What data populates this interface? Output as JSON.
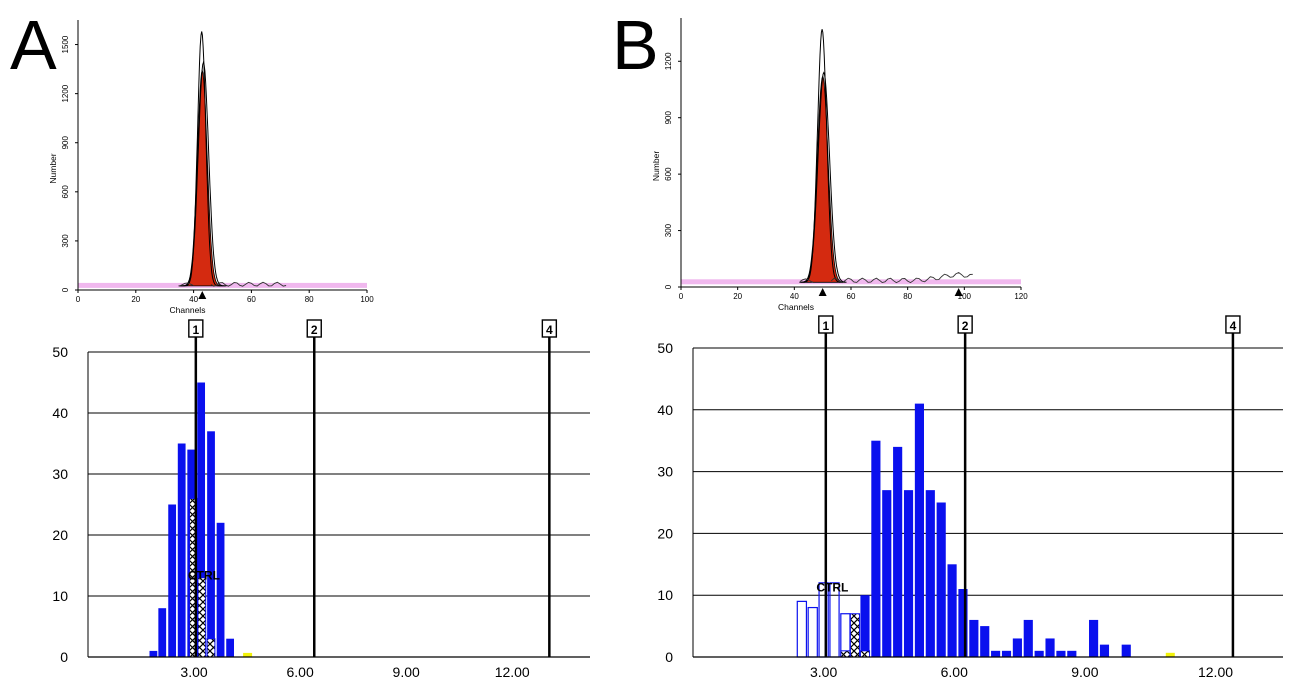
{
  "panels": [
    {
      "letter": "A",
      "flow": {
        "ylabel": "Number",
        "xlabel": "Channels",
        "xticks": [
          "0",
          "20",
          "40",
          "60",
          "80",
          "100"
        ],
        "yticks": [
          "0",
          "300",
          "600",
          "900",
          "1200",
          "1500"
        ],
        "xlim": [
          0,
          100
        ],
        "ylim": [
          0,
          1650
        ],
        "baseline": 25,
        "peak_center": 43,
        "peak_width": 1.7,
        "peak_height_fill": 1340,
        "peak_height_line1": 1390,
        "peak_height_line2": 1580,
        "markers": [
          43
        ]
      },
      "hist": {
        "yticks": [
          "0",
          "10",
          "20",
          "30",
          "40",
          "50"
        ],
        "xticks": [
          "3.00",
          "6.00",
          "9.00",
          "12.00"
        ],
        "xtick_values": [
          3,
          6,
          9,
          12
        ],
        "xlim": [
          0,
          14.2
        ],
        "ylim": [
          0,
          50
        ],
        "ref_lines": [
          {
            "label": "1",
            "x": 3.05
          },
          {
            "label": "2",
            "x": 6.4
          },
          {
            "label": "4",
            "x": 13.05
          }
        ],
        "ctrl_label": "CTRL",
        "ctrl_label_pos": [
          3.28,
          12.7
        ],
        "bar_width": 0.22,
        "bars": [
          {
            "x": 1.85,
            "y": 1
          },
          {
            "x": 2.1,
            "y": 8
          },
          {
            "x": 2.38,
            "y": 25
          },
          {
            "x": 2.65,
            "y": 35
          },
          {
            "x": 2.92,
            "y": 34
          },
          {
            "x": 3.2,
            "y": 45
          },
          {
            "x": 3.48,
            "y": 37
          },
          {
            "x": 3.75,
            "y": 22
          },
          {
            "x": 4.02,
            "y": 3
          }
        ],
        "ctrl_bars": [
          {
            "x": 2.98,
            "y": 26
          },
          {
            "x": 3.22,
            "y": 13
          },
          {
            "x": 3.48,
            "y": 3
          }
        ],
        "yellow": {
          "x": 4.5,
          "y": 1
        }
      }
    },
    {
      "letter": "B",
      "flow": {
        "ylabel": "Number",
        "xlabel": "Channels",
        "xticks": [
          "0",
          "20",
          "40",
          "60",
          "80",
          "100",
          "120"
        ],
        "yticks": [
          "0",
          "300",
          "600",
          "900",
          "1200"
        ],
        "xlim": [
          0,
          120
        ],
        "ylim": [
          0,
          1430
        ],
        "baseline": 25,
        "peak_center": 50,
        "peak_width": 1.9,
        "peak_height_fill": 1120,
        "peak_height_line1": 1140,
        "peak_height_line2": 1370,
        "markers": [
          50,
          98
        ]
      },
      "hist": {
        "yticks": [
          "0",
          "10",
          "20",
          "30",
          "40",
          "50"
        ],
        "xticks": [
          "3.00",
          "6.00",
          "9.00",
          "12.00"
        ],
        "xtick_values": [
          3,
          6,
          9,
          12
        ],
        "xlim": [
          0,
          13.55
        ],
        "ylim": [
          0,
          50
        ],
        "ref_lines": [
          {
            "label": "1",
            "x": 3.05
          },
          {
            "label": "2",
            "x": 6.25
          },
          {
            "label": "4",
            "x": 12.4
          }
        ],
        "ctrl_label": "CTRL",
        "ctrl_label_pos": [
          3.2,
          10.6
        ],
        "bar_width": 0.21,
        "bars": [
          {
            "x": 3.95,
            "y": 10
          },
          {
            "x": 4.2,
            "y": 35
          },
          {
            "x": 4.45,
            "y": 27
          },
          {
            "x": 4.7,
            "y": 34
          },
          {
            "x": 4.95,
            "y": 27
          },
          {
            "x": 5.2,
            "y": 41
          },
          {
            "x": 5.45,
            "y": 27
          },
          {
            "x": 5.7,
            "y": 25
          },
          {
            "x": 5.95,
            "y": 15
          },
          {
            "x": 6.2,
            "y": 11
          },
          {
            "x": 6.45,
            "y": 6
          },
          {
            "x": 6.7,
            "y": 5
          },
          {
            "x": 6.95,
            "y": 1
          },
          {
            "x": 7.2,
            "y": 1
          },
          {
            "x": 7.45,
            "y": 3
          },
          {
            "x": 7.7,
            "y": 6
          },
          {
            "x": 7.95,
            "y": 1
          },
          {
            "x": 8.2,
            "y": 3
          },
          {
            "x": 8.45,
            "y": 1
          },
          {
            "x": 8.7,
            "y": 1
          },
          {
            "x": 9.2,
            "y": 6
          },
          {
            "x": 9.45,
            "y": 2
          },
          {
            "x": 9.95,
            "y": 2
          }
        ],
        "ctrl_outline_bars": [
          {
            "x": 2.5,
            "y": 9
          },
          {
            "x": 2.75,
            "y": 8
          },
          {
            "x": 3.0,
            "y": 12
          },
          {
            "x": 3.25,
            "y": 12
          },
          {
            "x": 3.5,
            "y": 7
          }
        ],
        "ctrl_bars": [
          {
            "x": 3.5,
            "y": 1
          },
          {
            "x": 3.72,
            "y": 7
          },
          {
            "x": 3.95,
            "y": 1
          }
        ],
        "yellow": {
          "x": 10.95,
          "y": 1
        }
      }
    }
  ],
  "chart_data": [
    {
      "type": "area",
      "panel": "A",
      "xlabel": "Channels",
      "ylabel": "Number",
      "xlim": [
        0,
        100
      ],
      "ylim": [
        0,
        1650
      ],
      "peak_channel": 43,
      "peak_counts": 1340
    },
    {
      "type": "bar",
      "panel": "A",
      "xlim": [
        0,
        14.2
      ],
      "ylim": [
        0,
        50
      ],
      "x": [
        1.85,
        2.1,
        2.38,
        2.65,
        2.92,
        3.2,
        3.48,
        3.75,
        4.02
      ],
      "values": [
        1,
        8,
        25,
        35,
        34,
        45,
        37,
        22,
        3
      ],
      "reference_lines": {
        "1": 3.05,
        "2": 6.4,
        "4": 13.05
      }
    },
    {
      "type": "area",
      "panel": "B",
      "xlabel": "Channels",
      "ylabel": "Number",
      "xlim": [
        0,
        120
      ],
      "ylim": [
        0,
        1430
      ],
      "peak_channel": 50,
      "peak_counts": 1120
    },
    {
      "type": "bar",
      "panel": "B",
      "xlim": [
        0,
        13.55
      ],
      "ylim": [
        0,
        50
      ],
      "x": [
        3.95,
        4.2,
        4.45,
        4.7,
        4.95,
        5.2,
        5.45,
        5.7,
        5.95,
        6.2,
        6.45,
        6.7,
        6.95,
        7.2,
        7.45,
        7.7,
        7.95,
        8.2,
        8.45,
        8.7,
        9.2,
        9.45,
        9.95
      ],
      "values": [
        10,
        35,
        27,
        34,
        27,
        41,
        27,
        25,
        15,
        11,
        6,
        5,
        1,
        1,
        3,
        6,
        1,
        3,
        1,
        1,
        6,
        2,
        2
      ],
      "reference_lines": {
        "1": 3.05,
        "2": 6.25,
        "4": 12.4
      }
    }
  ]
}
